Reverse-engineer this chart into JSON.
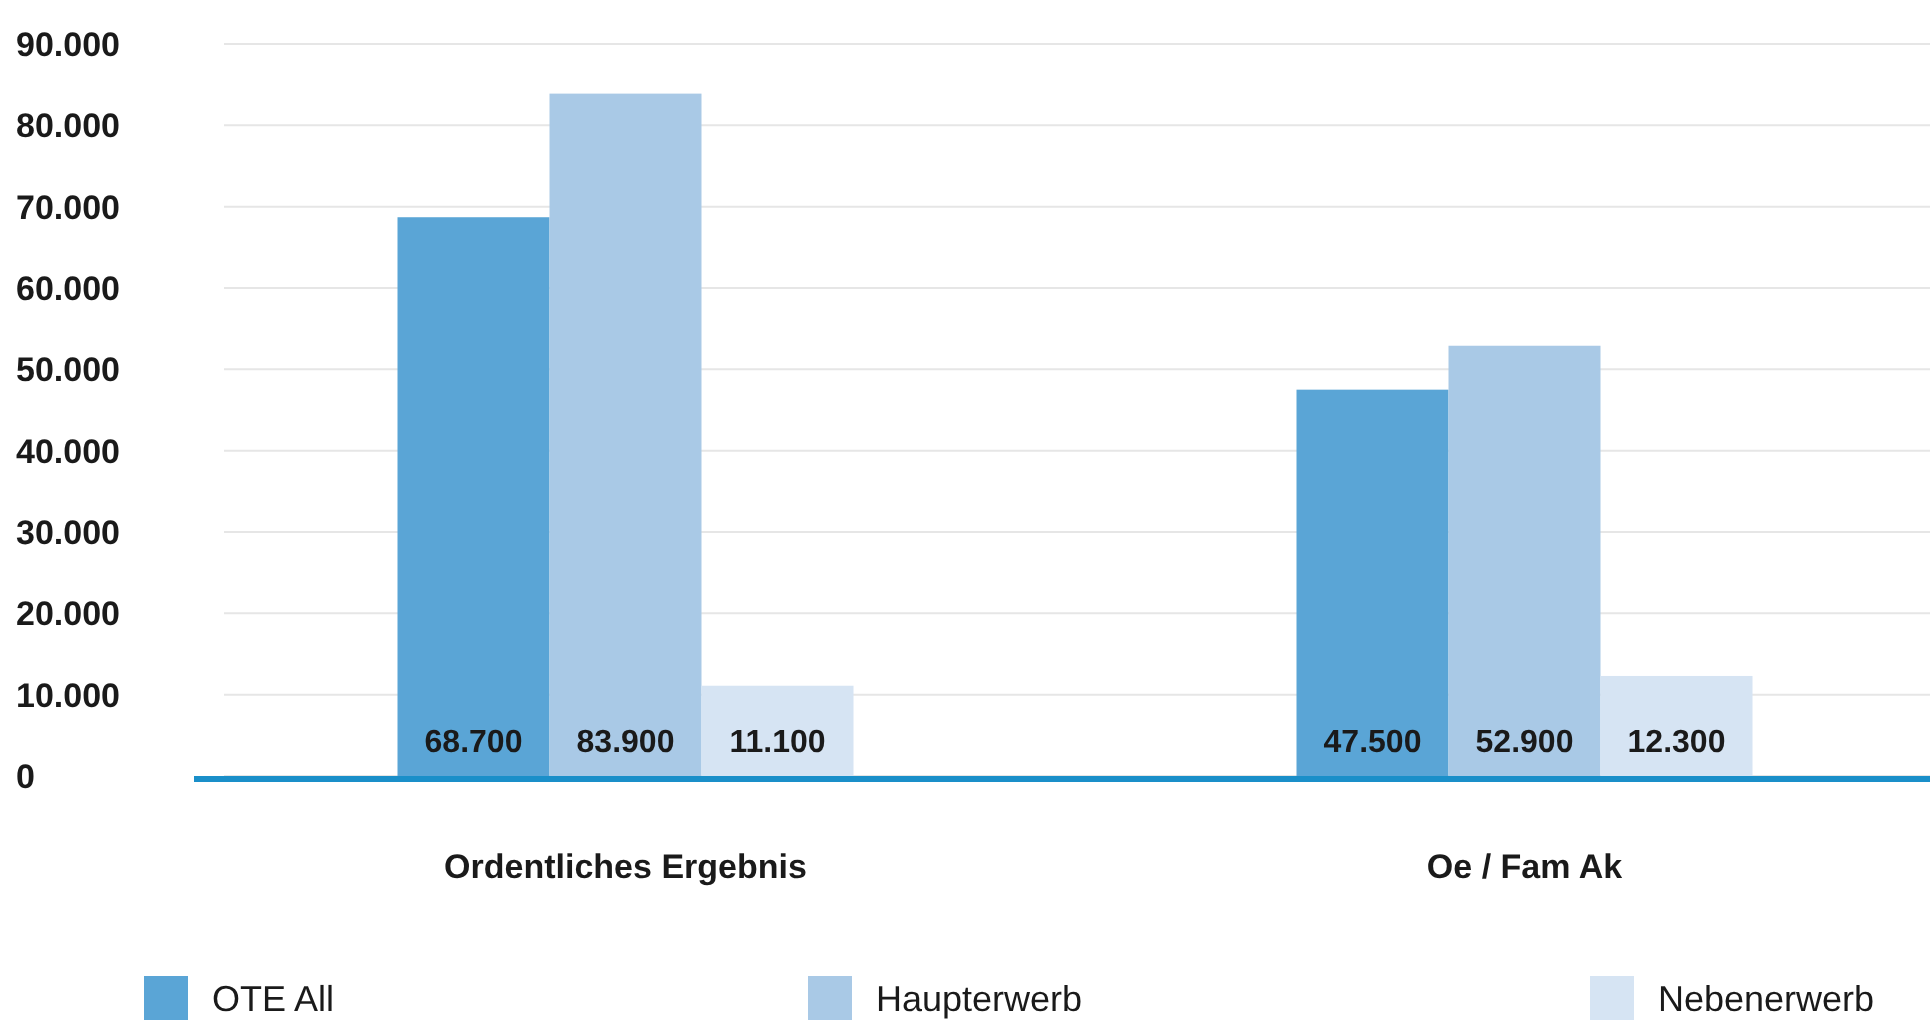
{
  "chart_data": {
    "type": "bar",
    "categories": [
      "Ordentliches Ergebnis",
      "Oe / Fam Ak"
    ],
    "series": [
      {
        "name": "OTE All",
        "color": "#5aa5d6",
        "values": [
          68700,
          47500
        ],
        "value_labels": [
          "68.700",
          "47.500"
        ]
      },
      {
        "name": "Haupterwerb",
        "color": "#a9c9e6",
        "values": [
          83900,
          52900
        ],
        "value_labels": [
          "83.900",
          "52.900"
        ]
      },
      {
        "name": "Nebenerwerb",
        "color": "#d6e4f3",
        "values": [
          11100,
          12300
        ],
        "value_labels": [
          "11.100",
          "12.300"
        ]
      }
    ],
    "ylim": [
      0,
      90000
    ],
    "yticks": [
      {
        "value": 0,
        "label": "0"
      },
      {
        "value": 10000,
        "label": "10.000"
      },
      {
        "value": 20000,
        "label": "20.000"
      },
      {
        "value": 30000,
        "label": "30.000"
      },
      {
        "value": 40000,
        "label": "40.000"
      },
      {
        "value": 50000,
        "label": "50.000"
      },
      {
        "value": 60000,
        "label": "60.000"
      },
      {
        "value": 70000,
        "label": "70.000"
      },
      {
        "value": 80000,
        "label": "80.000"
      },
      {
        "value": 90000,
        "label": "90.000"
      }
    ],
    "grid": "y",
    "legend": "bottom"
  }
}
